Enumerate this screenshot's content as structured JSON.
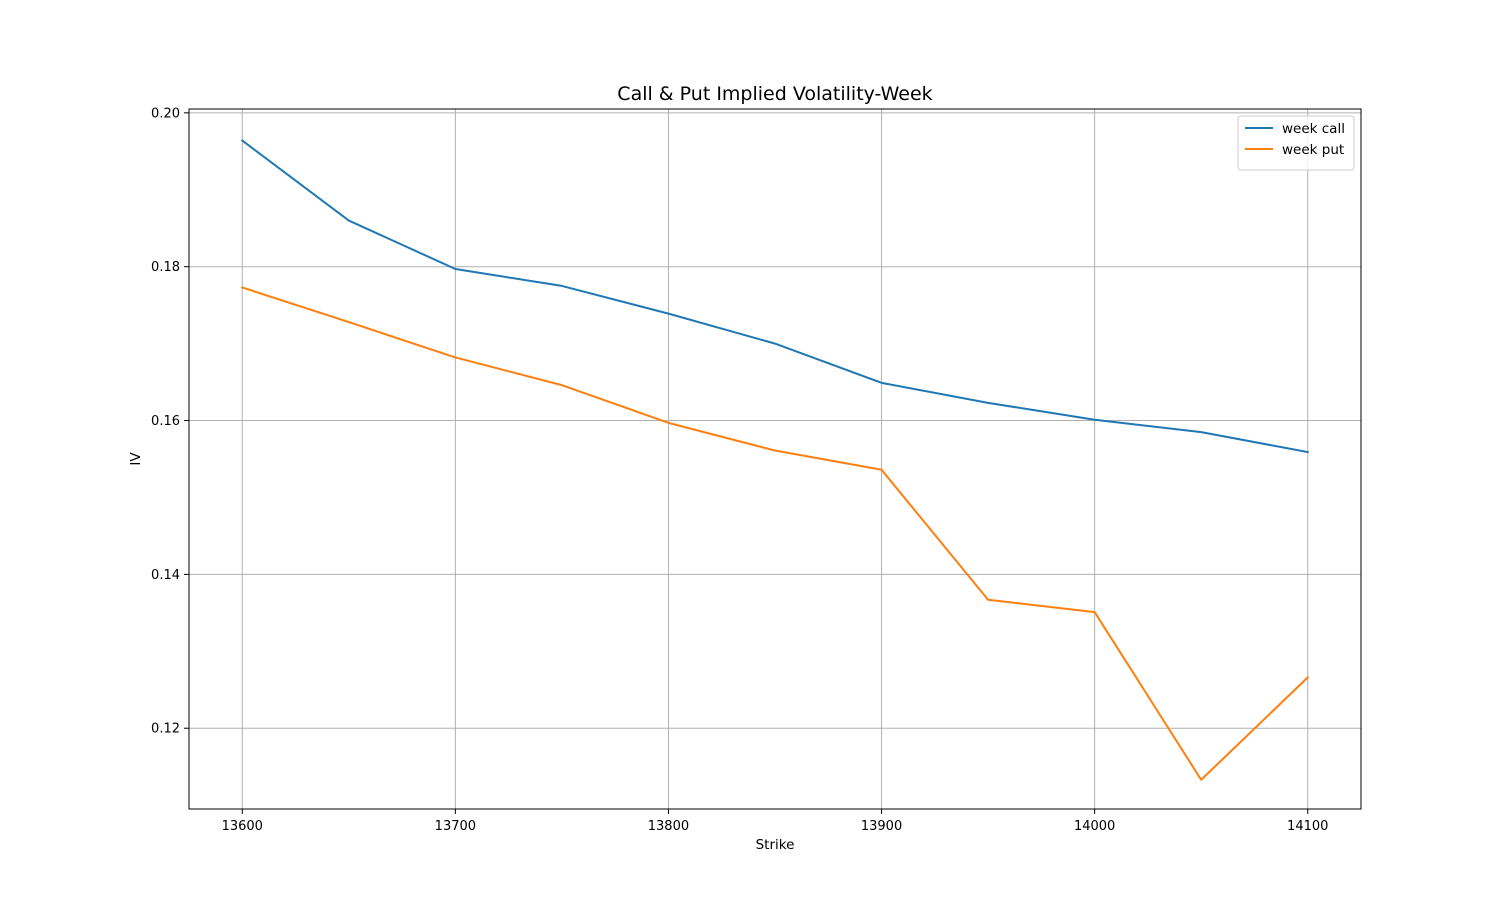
{
  "chart_data": {
    "type": "line",
    "title": "Call & Put Implied Volatility-Week",
    "xlabel": "Strike",
    "ylabel": "IV",
    "x": [
      13600,
      13650,
      13700,
      13750,
      13800,
      13850,
      13900,
      13950,
      14000,
      14050,
      14100
    ],
    "series": [
      {
        "name": "week call",
        "color": "#1f77b4",
        "values": [
          0.1964,
          0.186,
          0.1797,
          0.1775,
          0.1739,
          0.17,
          0.1649,
          0.1623,
          0.1601,
          0.1585,
          0.1559
        ]
      },
      {
        "name": "week put",
        "color": "#ff7f0e",
        "values": [
          0.1773,
          0.1728,
          0.1682,
          0.1646,
          0.1597,
          0.1561,
          0.1536,
          0.1367,
          0.1351,
          0.1133,
          0.1266
        ]
      }
    ],
    "xlim": [
      13575,
      14125
    ],
    "ylim": [
      0.1095,
      0.2005
    ],
    "xticks": [
      13600,
      13700,
      13800,
      13900,
      14000,
      14100
    ],
    "yticks": [
      0.12,
      0.14,
      0.16,
      0.18,
      0.2
    ],
    "ytick_labels": [
      "0.12",
      "0.14",
      "0.16",
      "0.18",
      "0.20"
    ],
    "grid": true,
    "legend_position": "top-right"
  }
}
